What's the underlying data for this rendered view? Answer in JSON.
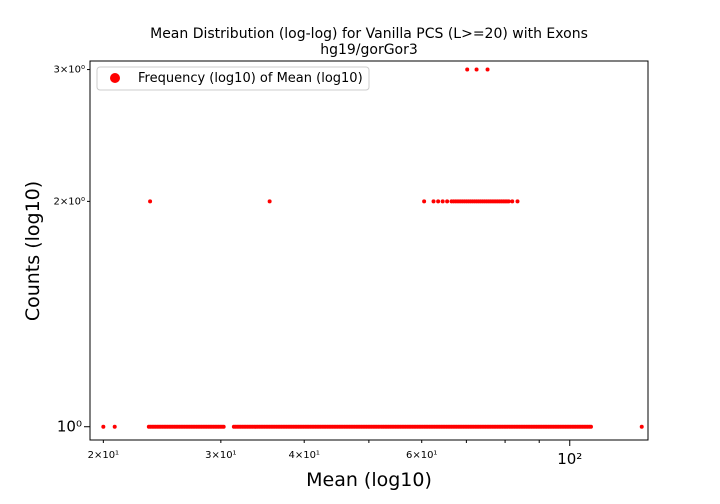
{
  "chart_data": {
    "type": "scatter",
    "title": "Mean Distribution (log-log) for Vanilla PCS (L>=20) with Exons",
    "subtitle": "hg19/gorGor3",
    "xlabel": "Mean (log10)",
    "ylabel": "Counts (log10)",
    "xscale": "log",
    "yscale": "log",
    "xlim": [
      19.1,
      131
    ],
    "ylim": [
      0.96,
      3.08
    ],
    "grid": false,
    "legend": {
      "placement": "top-left",
      "entries": [
        "Frequency (log10) of Mean (log10)"
      ]
    },
    "marker_color": "#ff0000",
    "x_ticks": [
      {
        "value": 20,
        "label": "2×10¹",
        "major": false
      },
      {
        "value": 30,
        "label": "3×10¹",
        "major": false
      },
      {
        "value": 40,
        "label": "4×10¹",
        "major": false
      },
      {
        "value": 60,
        "label": "6×10¹",
        "major": false
      },
      {
        "value": 100,
        "label": "10²",
        "major": true
      }
    ],
    "y_ticks": [
      {
        "value": 1,
        "label": "10⁰",
        "major": true
      },
      {
        "value": 2,
        "label": "2×10⁰",
        "major": false
      },
      {
        "value": 3,
        "label": "3×10⁰",
        "major": false
      }
    ],
    "series": [
      {
        "name": "Frequency (log10) of Mean (log10)",
        "points_y3_x": [
          70.2,
          72.5,
          75.3
        ],
        "points_y2_x": [
          23.5,
          35.5,
          60.5,
          62.5,
          63.5,
          64.5,
          65.5,
          66.5,
          67.0,
          67.5,
          68.0,
          68.5,
          69.0,
          69.5,
          70.0,
          70.5,
          71.0,
          71.5,
          72.0,
          72.5,
          73.0,
          73.5,
          74.0,
          74.5,
          75.0,
          75.5,
          76.0,
          76.5,
          77.0,
          77.5,
          78.0,
          78.5,
          79.0,
          79.5,
          80.0,
          80.5,
          81.0,
          82.0,
          83.5
        ],
        "points_y1_x_single": [
          20.0,
          20.8,
          128.2
        ],
        "points_y1_x_dense_range": [
          23.4,
          107.6
        ]
      }
    ]
  }
}
